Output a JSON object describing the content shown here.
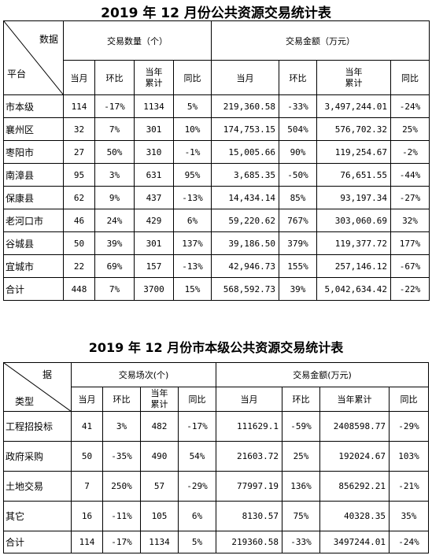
{
  "table1": {
    "title": "2019 年 12 月份公共资源交易统计表",
    "corner_top": "数据",
    "corner_bottom": "平台",
    "group_count": "交易数量（个）",
    "group_amount": "交易金额（万元）",
    "sub_headers": [
      "当月",
      "环比",
      "当年\n累计",
      "同比",
      "当月",
      "环比",
      "当年\n累计",
      "同比"
    ],
    "rows": [
      {
        "name": "市本级",
        "cells": [
          "114",
          "-17%",
          "1134",
          "5%",
          "219,360.58",
          "-33%",
          "3,497,244.01",
          "-24%"
        ]
      },
      {
        "name": "襄州区",
        "cells": [
          "32",
          "7%",
          "301",
          "10%",
          "174,753.15",
          "504%",
          "576,702.32",
          "25%"
        ]
      },
      {
        "name": "枣阳市",
        "cells": [
          "27",
          "50%",
          "310",
          "-1%",
          "15,005.66",
          "90%",
          "119,254.67",
          "-2%"
        ]
      },
      {
        "name": "南漳县",
        "cells": [
          "95",
          "3%",
          "631",
          "95%",
          "3,685.35",
          "-50%",
          "76,651.55",
          "-44%"
        ]
      },
      {
        "name": "保康县",
        "cells": [
          "62",
          "9%",
          "437",
          "-13%",
          "14,434.14",
          "85%",
          "93,197.34",
          "-27%"
        ]
      },
      {
        "name": "老河口市",
        "cells": [
          "46",
          "24%",
          "429",
          "6%",
          "59,220.62",
          "767%",
          "303,060.69",
          "32%"
        ]
      },
      {
        "name": "谷城县",
        "cells": [
          "50",
          "39%",
          "301",
          "137%",
          "39,186.50",
          "379%",
          "119,377.72",
          "177%"
        ]
      },
      {
        "name": "宜城市",
        "cells": [
          "22",
          "69%",
          "157",
          "-13%",
          "42,946.73",
          "155%",
          "257,146.12",
          "-67%"
        ]
      },
      {
        "name": "合计",
        "cells": [
          "448",
          "7%",
          "3700",
          "15%",
          "568,592.73",
          "39%",
          "5,042,634.42",
          "-22%"
        ]
      }
    ]
  },
  "table2": {
    "title": "2019 年 12 月份市本级公共资源交易统计表",
    "corner_top": "据",
    "corner_bottom": "类型",
    "group_count": "交易场次(个)",
    "group_amount": "交易金额(万元)",
    "sub_headers": [
      "当月",
      "环比",
      "当年\n累计",
      "同比",
      "当月",
      "环比",
      "当年累计",
      "同比"
    ],
    "rows": [
      {
        "name": "工程招投标",
        "cells": [
          "41",
          "3%",
          "482",
          "-17%",
          "111629.1",
          "-59%",
          "2408598.77",
          "-29%"
        ]
      },
      {
        "name": "政府采购",
        "cells": [
          "50",
          "-35%",
          "490",
          "54%",
          "21603.72",
          "25%",
          "192024.67",
          "103%"
        ]
      },
      {
        "name": "土地交易",
        "cells": [
          "7",
          "250%",
          "57",
          "-29%",
          "77997.19",
          "136%",
          "856292.21",
          "-21%"
        ]
      },
      {
        "name": "其它",
        "cells": [
          "16",
          "-11%",
          "105",
          "6%",
          "8130.57",
          "75%",
          "40328.35",
          "35%"
        ]
      },
      {
        "name": "合计",
        "cells": [
          "114",
          "-17%",
          "1134",
          "5%",
          "219360.58",
          "-33%",
          "3497244.01",
          "-24%"
        ]
      }
    ]
  }
}
